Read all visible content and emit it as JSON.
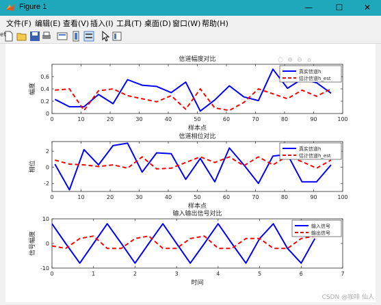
{
  "window": {
    "title": "Figure 1",
    "minimize_glyph": "—",
    "maximize_glyph": "☐",
    "close_glyph": "✕",
    "edge_text": "et"
  },
  "menu": [
    {
      "label": "文件(F)"
    },
    {
      "label": "编辑(E)"
    },
    {
      "label": "查看(V)"
    },
    {
      "label": "插入(I)"
    },
    {
      "label": "工具(T)"
    },
    {
      "label": "桌面(D)"
    },
    {
      "label": "窗口(W)"
    },
    {
      "label": "帮助(H)"
    }
  ],
  "toolbar_icons": [
    "new-figure-icon",
    "open-file-icon",
    "save-icon",
    "print-icon",
    "link-plot-icon",
    "insert-colorbar-icon",
    "insert-legend-icon",
    "pointer-icon",
    "property-inspector-icon"
  ],
  "watermark": "CSDN @咖啡 仙人",
  "chart_data": [
    {
      "type": "line",
      "title": "信道幅度对比",
      "xlabel": "样本点",
      "ylabel": "幅度",
      "xlim": [
        0,
        100
      ],
      "ylim": [
        0,
        0.8
      ],
      "xticks": [
        0,
        10,
        20,
        30,
        40,
        50,
        60,
        70,
        80,
        90,
        100
      ],
      "yticks": [
        0,
        0.2,
        0.4,
        0.6
      ],
      "legend_position": "top-right",
      "series": [
        {
          "name": "真实信道h",
          "color": "#0000ff",
          "style": "solid",
          "x": [
            1,
            6,
            11,
            16,
            21,
            26,
            31,
            36,
            41,
            46,
            51,
            56,
            61,
            66,
            71,
            76,
            81,
            86,
            91,
            96
          ],
          "y": [
            0.23,
            0.11,
            0.11,
            0.31,
            0.16,
            0.55,
            0.46,
            0.44,
            0.34,
            0.51,
            0.04,
            0.22,
            0.45,
            0.27,
            0.21,
            0.72,
            0.41,
            0.56,
            0.5,
            0.33
          ]
        },
        {
          "name": "估计信道h_est",
          "color": "#ff0000",
          "style": "dashed",
          "x": [
            1,
            6,
            11,
            16,
            21,
            26,
            31,
            36,
            41,
            46,
            51,
            56,
            61,
            66,
            71,
            76,
            81,
            86,
            91,
            96
          ],
          "y": [
            0.38,
            0.4,
            0.05,
            0.37,
            0.4,
            0.29,
            0.24,
            0.19,
            0.29,
            0.07,
            0.4,
            0.09,
            0.05,
            0.18,
            0.4,
            0.32,
            0.24,
            0.38,
            0.28,
            0.4
          ]
        }
      ]
    },
    {
      "type": "line",
      "title": "信道相位对比",
      "xlabel": "样本点",
      "ylabel": "相位",
      "xlim": [
        0,
        100
      ],
      "ylim": [
        -3,
        3.2
      ],
      "xticks": [
        0,
        10,
        20,
        30,
        40,
        50,
        60,
        70,
        80,
        90,
        100
      ],
      "yticks": [
        -2,
        0,
        2
      ],
      "legend_position": "top-right",
      "series": [
        {
          "name": "真实信道h",
          "color": "#0000ff",
          "style": "solid",
          "x": [
            1,
            6,
            11,
            16,
            21,
            26,
            31,
            36,
            41,
            46,
            51,
            56,
            61,
            66,
            71,
            76,
            81,
            86,
            91,
            96
          ],
          "y": [
            0.4,
            -2.8,
            2.2,
            0.3,
            2.7,
            3.0,
            -0.6,
            1.8,
            1.7,
            -1.5,
            1.1,
            -1.8,
            2.4,
            0.3,
            -2.0,
            1.4,
            1.6,
            -1.8,
            -1.8,
            0.3
          ]
        },
        {
          "name": "估计信道h_est",
          "color": "#ff0000",
          "style": "dashed",
          "x": [
            1,
            6,
            11,
            16,
            21,
            26,
            31,
            36,
            41,
            46,
            51,
            56,
            61,
            66,
            71,
            76,
            81,
            86,
            91,
            96
          ],
          "y": [
            0.9,
            0.4,
            0.3,
            0.1,
            0.3,
            -0.1,
            1.3,
            -0.2,
            -0.1,
            0.6,
            1.3,
            0.6,
            1.3,
            0.2,
            1.3,
            0.3,
            1.4,
            0.7,
            -0.1,
            0.9
          ]
        }
      ]
    },
    {
      "type": "line",
      "title": "输入输出信号对比",
      "xlabel": "时间",
      "ylabel": "信号幅度",
      "xlim": [
        0,
        7
      ],
      "ylim": [
        -10,
        10
      ],
      "xticks": [
        0,
        1,
        2,
        3,
        4,
        5,
        6,
        7
      ],
      "yticks": [
        -10,
        0,
        10
      ],
      "legend_position": "top-right",
      "series": [
        {
          "name": "输入信号",
          "color": "#0000ff",
          "style": "solid",
          "x": [
            0,
            0.33,
            0.67,
            1,
            1.33,
            1.67,
            2,
            2.33,
            2.67,
            3,
            3.33,
            3.67,
            4,
            4.33,
            4.67,
            5,
            5.33,
            5.67,
            6,
            6.33
          ],
          "y": [
            8,
            0,
            -8,
            0,
            8,
            0,
            -8,
            0,
            8,
            0,
            -8,
            0,
            8,
            0,
            -8,
            2,
            8,
            -2,
            -8,
            2
          ]
        },
        {
          "name": "输出信号",
          "color": "#ff0000",
          "style": "dashed",
          "x": [
            0,
            0.33,
            0.67,
            1,
            1.33,
            1.67,
            2,
            2.33,
            2.67,
            3,
            3.33,
            3.67,
            4,
            4.33,
            4.67,
            5,
            5.33,
            5.67,
            6,
            6.33
          ],
          "y": [
            -1,
            -2,
            2,
            3,
            -2,
            -2,
            2,
            3,
            -2,
            -2,
            2,
            3,
            -2,
            -2,
            2,
            2,
            -2,
            -2,
            2,
            3
          ]
        }
      ]
    }
  ]
}
